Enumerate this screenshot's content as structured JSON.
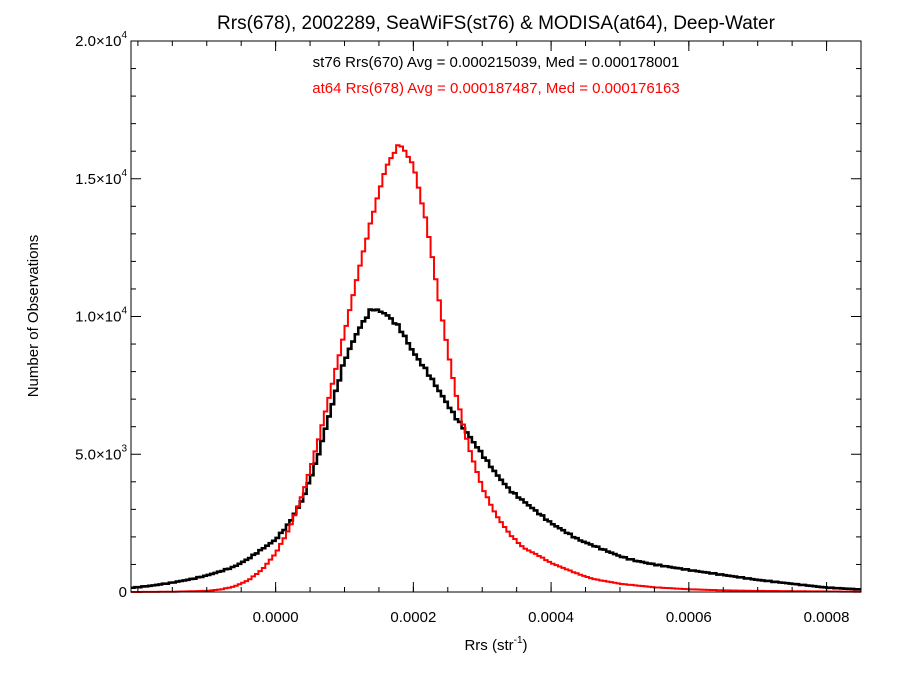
{
  "chart_data": {
    "type": "histogram",
    "title": "Rrs(678), 2002289, SeaWiFS(st76) & MODISA(at64), Deep-Water",
    "xlabel_base": "Rrs (str",
    "xlabel_exp": "-1",
    "xlabel_close": ")",
    "ylabel": "Number of Observations",
    "xlim": [
      -0.00021,
      0.00085
    ],
    "ylim": [
      0,
      20000
    ],
    "x_ticks": [
      {
        "value": 0.0,
        "label": "0.0000"
      },
      {
        "value": 0.0002,
        "label": "0.0002"
      },
      {
        "value": 0.0004,
        "label": "0.0004"
      },
      {
        "value": 0.0006,
        "label": "0.0006"
      },
      {
        "value": 0.0008,
        "label": "0.0008"
      }
    ],
    "y_ticks": [
      {
        "value": 0,
        "mantissa": "0",
        "exponent": ""
      },
      {
        "value": 5000,
        "mantissa": "5.0×10",
        "exponent": "3"
      },
      {
        "value": 10000,
        "mantissa": "1.0×10",
        "exponent": "4"
      },
      {
        "value": 15000,
        "mantissa": "1.5×10",
        "exponent": "4"
      },
      {
        "value": 20000,
        "mantissa": "2.0×10",
        "exponent": "4"
      }
    ],
    "annotations": [
      "st76 Rrs(670) Avg = 0.000215039, Med = 0.000178001",
      "at64 Rrs(678) Avg = 0.000187487, Med = 0.000176163"
    ],
    "series": [
      {
        "color": "#000000",
        "bin_width": 5e-06,
        "points": [
          [
            -0.00021,
            150
          ],
          [
            -0.00018,
            230
          ],
          [
            -0.00015,
            340
          ],
          [
            -0.00012,
            480
          ],
          [
            -0.0001,
            600
          ],
          [
            -8e-05,
            750
          ],
          [
            -6e-05,
            920
          ],
          [
            -4e-05,
            1200
          ],
          [
            -2e-05,
            1550
          ],
          [
            0.0,
            1900
          ],
          [
            2e-05,
            2500
          ],
          [
            4e-05,
            3400
          ],
          [
            6e-05,
            4800
          ],
          [
            8e-05,
            6600
          ],
          [
            0.0001,
            8400
          ],
          [
            0.00012,
            9500
          ],
          [
            0.00014,
            10300
          ],
          [
            0.00016,
            10100
          ],
          [
            0.00018,
            9600
          ],
          [
            0.0002,
            8700
          ],
          [
            0.00022,
            8000
          ],
          [
            0.00024,
            7200
          ],
          [
            0.00026,
            6400
          ],
          [
            0.00028,
            5700
          ],
          [
            0.0003,
            5000
          ],
          [
            0.00032,
            4300
          ],
          [
            0.00034,
            3700
          ],
          [
            0.00036,
            3300
          ],
          [
            0.00038,
            2900
          ],
          [
            0.0004,
            2500
          ],
          [
            0.00042,
            2200
          ],
          [
            0.00044,
            1900
          ],
          [
            0.00046,
            1700
          ],
          [
            0.00048,
            1500
          ],
          [
            0.0005,
            1300
          ],
          [
            0.00052,
            1150
          ],
          [
            0.00055,
            1000
          ],
          [
            0.0006,
            800
          ],
          [
            0.00065,
            620
          ],
          [
            0.0007,
            440
          ],
          [
            0.00075,
            300
          ],
          [
            0.0008,
            160
          ],
          [
            0.00085,
            90
          ]
        ]
      },
      {
        "color": "#ff0000",
        "bin_width": 5e-06,
        "points": [
          [
            -0.00021,
            0
          ],
          [
            -0.00015,
            10
          ],
          [
            -0.0001,
            40
          ],
          [
            -8e-05,
            90
          ],
          [
            -6e-05,
            200
          ],
          [
            -4e-05,
            420
          ],
          [
            -2e-05,
            800
          ],
          [
            0.0,
            1400
          ],
          [
            2e-05,
            2300
          ],
          [
            4e-05,
            3600
          ],
          [
            6e-05,
            5300
          ],
          [
            8e-05,
            7300
          ],
          [
            0.0001,
            9400
          ],
          [
            0.00012,
            11600
          ],
          [
            0.00014,
            13600
          ],
          [
            0.00016,
            15400
          ],
          [
            0.00018,
            16300
          ],
          [
            0.0002,
            15500
          ],
          [
            0.00022,
            13300
          ],
          [
            0.00024,
            10200
          ],
          [
            0.00026,
            7400
          ],
          [
            0.00028,
            5300
          ],
          [
            0.0003,
            3800
          ],
          [
            0.00032,
            2800
          ],
          [
            0.00034,
            2100
          ],
          [
            0.00036,
            1600
          ],
          [
            0.00038,
            1350
          ],
          [
            0.0004,
            1050
          ],
          [
            0.00042,
            850
          ],
          [
            0.00044,
            650
          ],
          [
            0.00046,
            480
          ],
          [
            0.0005,
            300
          ],
          [
            0.00055,
            170
          ],
          [
            0.0006,
            100
          ],
          [
            0.00065,
            60
          ],
          [
            0.0007,
            40
          ],
          [
            0.00085,
            10
          ]
        ]
      }
    ]
  }
}
